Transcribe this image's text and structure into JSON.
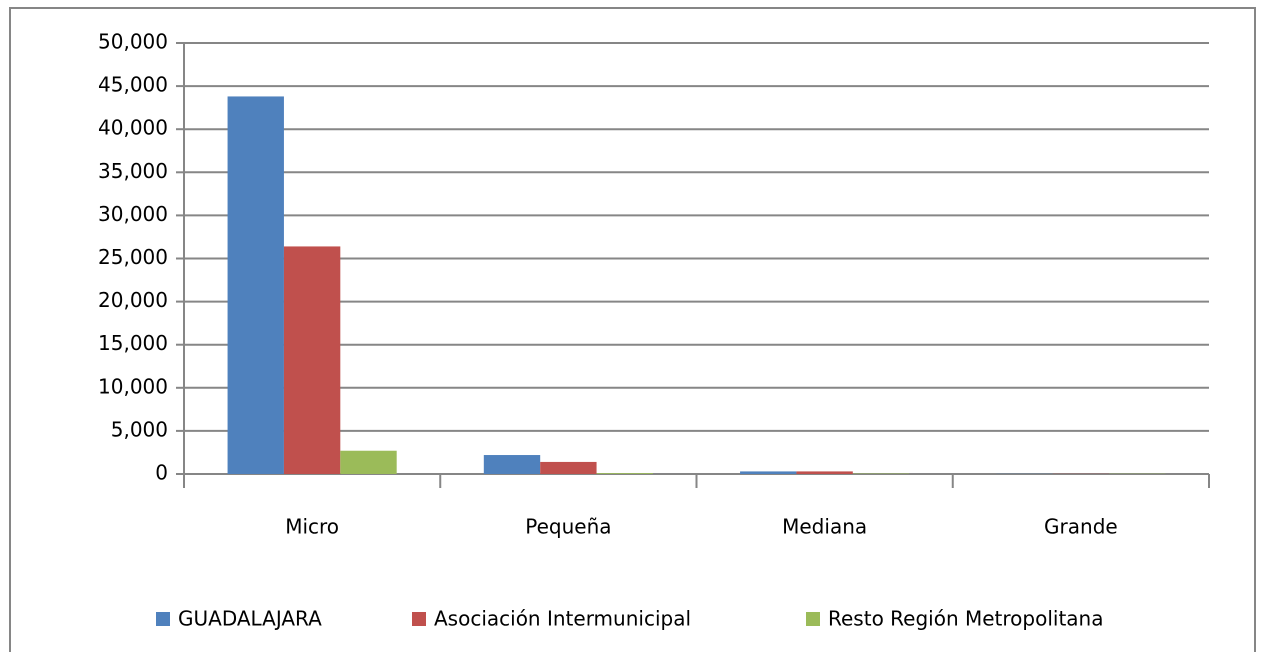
{
  "chart_data": {
    "type": "bar",
    "categories": [
      "Micro",
      "Pequeña",
      "Mediana",
      "Grande"
    ],
    "series": [
      {
        "name": "GUADALAJARA",
        "color": "#4f81bd",
        "values": [
          43800,
          2200,
          300,
          20
        ]
      },
      {
        "name": "Asociación Intermunicipal",
        "color": "#c0504d",
        "values": [
          26400,
          1400,
          300,
          20
        ]
      },
      {
        "name": "Resto Región Metropolitana",
        "color": "#9bbb59",
        "values": [
          2700,
          100,
          50,
          30
        ]
      }
    ],
    "ylim": [
      0,
      50000
    ],
    "yticks": [
      0,
      {
        "value": 5000,
        "label": "5,000"
      },
      {
        "value": 10000,
        "label": "10,000"
      },
      {
        "value": 15000,
        "label": "15,000"
      },
      {
        "value": 20000,
        "label": "20,000"
      },
      {
        "value": 25000,
        "label": "25,000"
      },
      {
        "value": 30000,
        "label": "30,000"
      },
      {
        "value": 35000,
        "label": "35,000"
      },
      {
        "value": 40000,
        "label": "40,000"
      },
      {
        "value": 45000,
        "label": "45,000"
      },
      {
        "value": 50000,
        "label": "50,000"
      }
    ],
    "grid": true,
    "legend": "bottom"
  }
}
